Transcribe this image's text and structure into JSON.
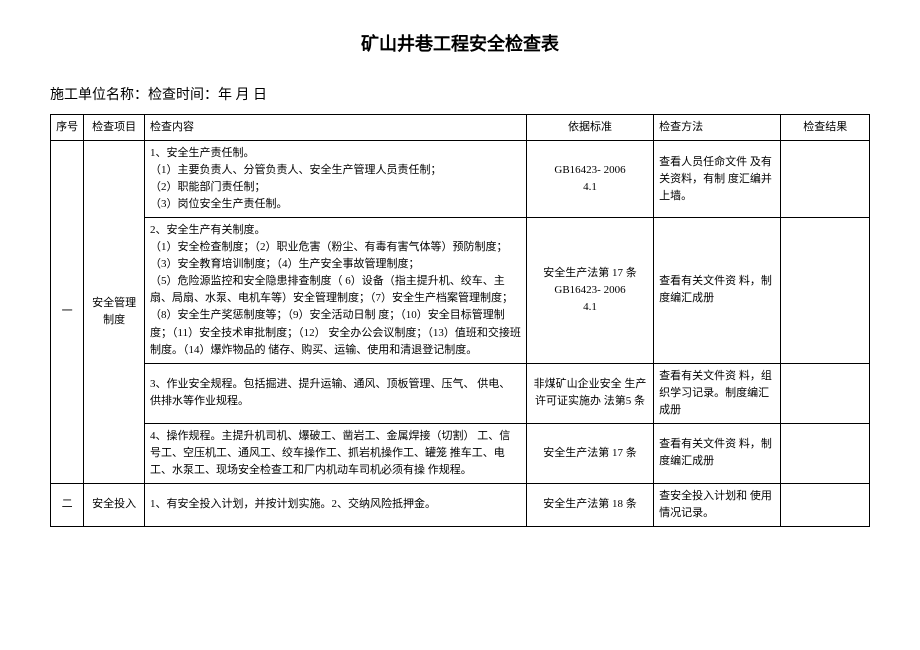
{
  "title": "矿山井巷工程安全检查表",
  "meta": "施工单位名称：检查时间：年 月 日",
  "headers": {
    "seq": "序号",
    "item": "检查项目",
    "content": "检查内容",
    "basis": "依据标准",
    "method": "检查方法",
    "result": "检查结果"
  },
  "rows": [
    {
      "seq": "一",
      "item": "安全管理 制度",
      "content": "1、安全生产责任制。\n（1）主要负责人、分管负责人、安全生产管理人员责任制；\n（2）职能部门责任制；\n（3）岗位安全生产责任制。",
      "basis": "GB16423- 2006\n4.1",
      "method": "查看人员任命文件 及有关资料，有制 度汇编并上墙。",
      "result": ""
    },
    {
      "content": "2、安全生产有关制度。\n（1）安全检查制度；（2）职业危害（粉尘、有毒有害气体等）预防制度；（3）安全教育培训制度；（4）生产安全事故管理制度；\n（5）危险源监控和安全隐患排查制度（ 6）设备（指主提升机、绞车、主扇、局扇、水泵、电机车等）安全管理制度；（7）安全生产档案管理制度；（8）安全生产奖惩制度等；（9）安全活动日制 度；（10）安全目标管理制度；（11）安全技术审批制度；（12） 安全办公会议制度；（13）值班和交接班制度。（14）爆炸物品的 储存、购买、运输、使用和清退登记制度。",
      "basis": "安全生产法第 17 条\nGB16423- 2006\n4.1",
      "method": "查看有关文件资 料，制度编汇成册",
      "result": ""
    },
    {
      "content": "3、作业安全规程。包括掘进、提升运输、通风、顶板管理、压气、 供电、供排水等作业规程。",
      "basis": "非煤矿山企业安全 生产许可证实施办 法第5 条",
      "method": "查看有关文件资 料，组织学习记录。制度编汇成册",
      "result": ""
    },
    {
      "content": "4、操作规程。主提升机司机、爆破工、凿岩工、金属焊接（切割） 工、信号工、空压机工、通风工、绞车操作工、抓岩机操作工、罐笼 推车工、电工、水泵工、现场安全检查工和厂内机动车司机必须有操 作规程。",
      "basis": "安全生产法第 17 条",
      "method": "查看有关文件资 料，制度编汇成册",
      "result": ""
    },
    {
      "seq": "二",
      "item": "安全投入",
      "content": "1、有安全投入计划，并按计划实施。2、交纳风险抵押金。",
      "basis": "安全生产法第 18 条",
      "method": "查安全投入计划和 使用情况记录。",
      "result": ""
    }
  ]
}
